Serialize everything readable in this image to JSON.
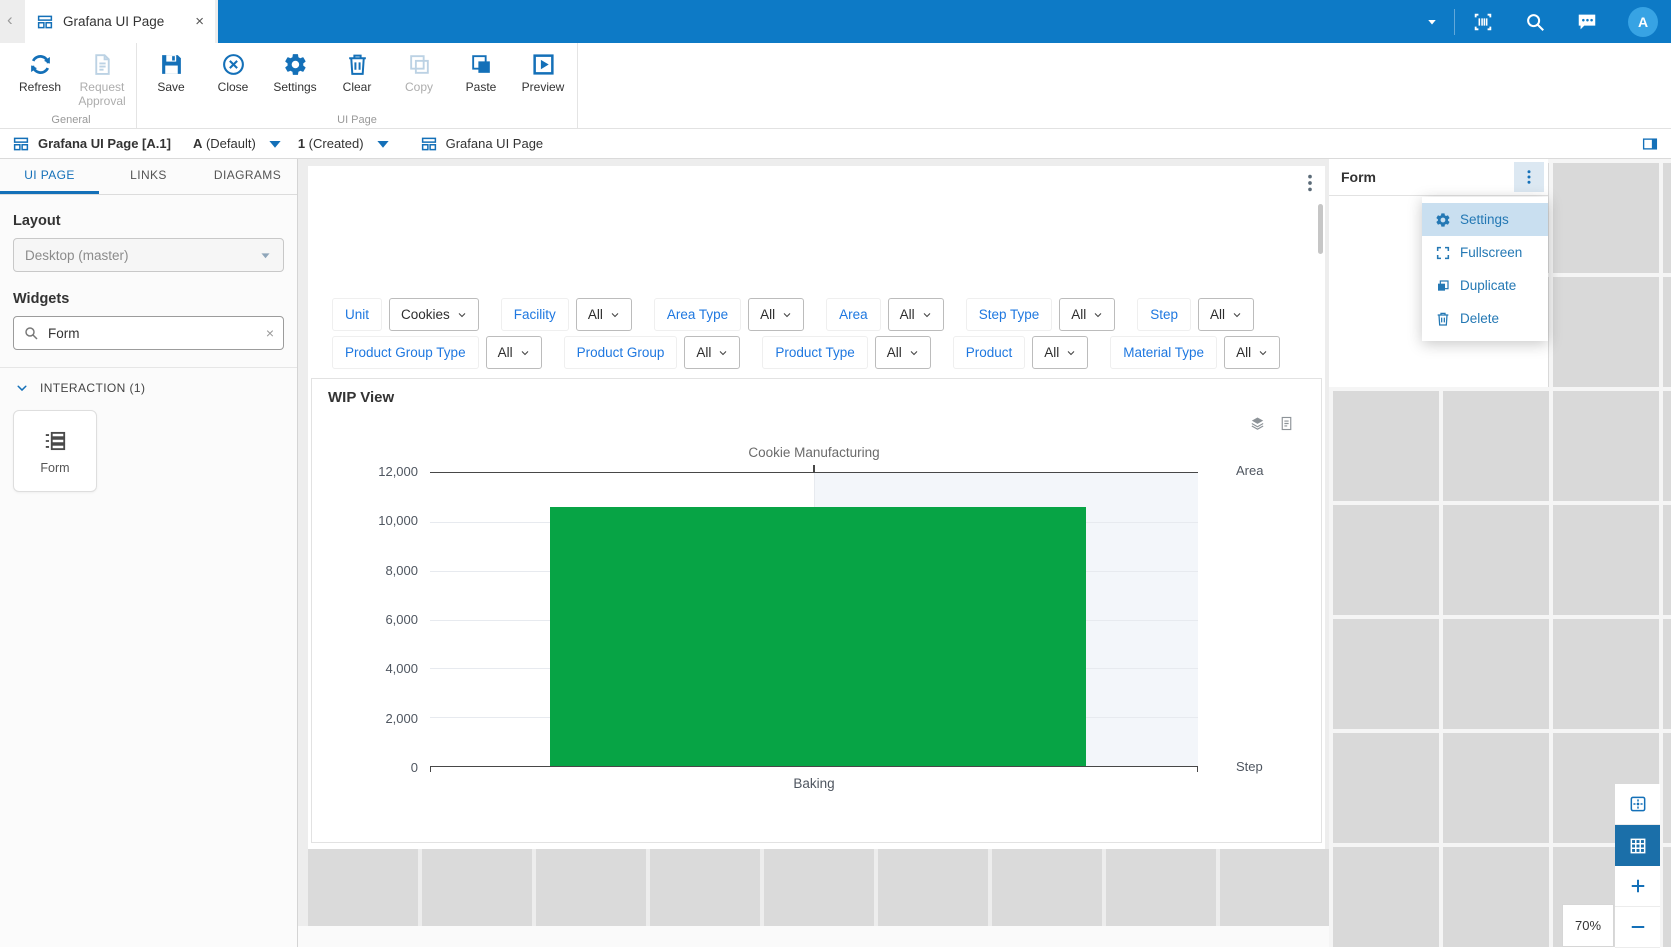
{
  "titlebar": {
    "back": "‹",
    "tab_title": "Grafana UI Page",
    "close": "×",
    "avatar": "A"
  },
  "toolbar": {
    "groups": [
      {
        "label": "General",
        "buttons": [
          {
            "label": "Refresh",
            "icon": "refresh-icon",
            "enabled": true
          },
          {
            "label": "Request Approval",
            "icon": "request-approval-icon",
            "enabled": false
          }
        ]
      },
      {
        "label": "UI Page",
        "buttons": [
          {
            "label": "Save",
            "icon": "save-icon",
            "enabled": true
          },
          {
            "label": "Close",
            "icon": "close-icon",
            "enabled": true
          },
          {
            "label": "Settings",
            "icon": "gear-icon",
            "enabled": true
          },
          {
            "label": "Clear",
            "icon": "trash-icon",
            "enabled": true
          },
          {
            "label": "Copy",
            "icon": "copy-icon",
            "enabled": false
          },
          {
            "label": "Paste",
            "icon": "paste-icon",
            "enabled": true
          },
          {
            "label": "Preview",
            "icon": "preview-icon",
            "enabled": true
          }
        ]
      }
    ]
  },
  "breadcrumb": {
    "title": "Grafana UI Page [A.1]",
    "revision": "A",
    "revision_state": "(Default)",
    "version": "1",
    "version_state": "(Created)",
    "page": "Grafana UI Page"
  },
  "sidebar": {
    "tabs": [
      {
        "label": "UI PAGE",
        "active": true
      },
      {
        "label": "LINKS",
        "active": false
      },
      {
        "label": "DIAGRAMS",
        "active": false
      }
    ],
    "layout_label": "Layout",
    "layout_value": "Desktop (master)",
    "widgets_label": "Widgets",
    "search_value": "Form",
    "search_clear": "×",
    "section_label": "INTERACTION (1)",
    "widget_label": "Form"
  },
  "canvas": {
    "panel_title": "WIP View",
    "filters_row1": [
      {
        "label": "Unit",
        "value": "Cookies"
      },
      {
        "label": "Facility",
        "value": "All"
      },
      {
        "label": "Area Type",
        "value": "All"
      },
      {
        "label": "Area",
        "value": "All"
      },
      {
        "label": "Step Type",
        "value": "All"
      },
      {
        "label": "Step",
        "value": "All"
      }
    ],
    "filters_row2": [
      {
        "label": "Product Group Type",
        "value": "All"
      },
      {
        "label": "Product Group",
        "value": "All"
      },
      {
        "label": "Product Type",
        "value": "All"
      },
      {
        "label": "Product",
        "value": "All"
      },
      {
        "label": "Material Type",
        "value": "All"
      }
    ]
  },
  "chart_data": {
    "type": "bar",
    "title": "Cookie Manufacturing",
    "categories": [
      "Baking"
    ],
    "values": [
      10600
    ],
    "ylim": [
      0,
      12000
    ],
    "yticks": [
      "0",
      "2,000",
      "4,000",
      "6,000",
      "8,000",
      "10,000",
      "12,000"
    ],
    "top_axis_label": "Area",
    "bottom_axis_label": "Step",
    "bar_color": "#07a445",
    "grid": true,
    "legend": "none"
  },
  "form_panel": {
    "title": "Form",
    "menu": [
      {
        "label": "Settings",
        "icon": "gear-icon",
        "active": true
      },
      {
        "label": "Fullscreen",
        "icon": "fullscreen-icon",
        "active": false
      },
      {
        "label": "Duplicate",
        "icon": "duplicate-icon",
        "active": false
      },
      {
        "label": "Delete",
        "icon": "trash-icon",
        "active": false
      }
    ]
  },
  "zoom_controls": {
    "value": "70%"
  },
  "colors": {
    "topbar_blue": "#0d7ac6",
    "accent_blue": "#1470b8",
    "avatar_blue": "#37a3e4",
    "link_blue": "#1f78e0",
    "menu_blue": "#2478b4",
    "bar_green": "#07a445",
    "tile_gray": "#d9d9d9",
    "active_zoom_btn": "#1b6fa9"
  }
}
